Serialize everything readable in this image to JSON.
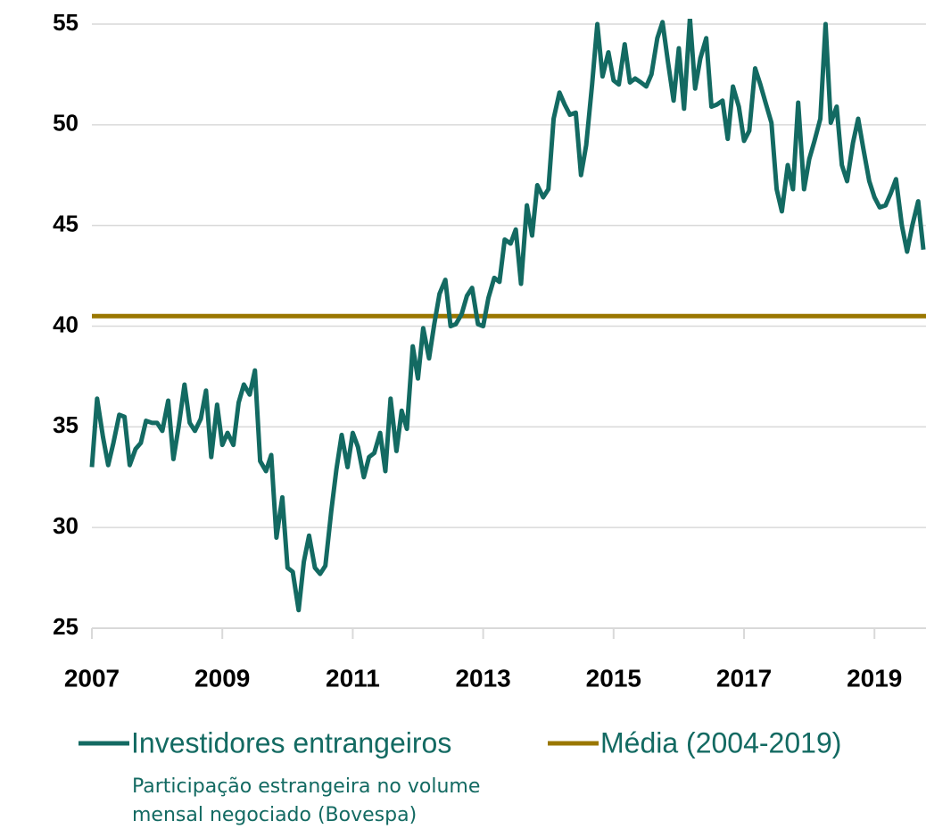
{
  "chart_data": {
    "type": "line",
    "ylim": [
      25,
      55
    ],
    "yticks": [
      25,
      30,
      35,
      40,
      45,
      50,
      55
    ],
    "grid": true,
    "xlim": [
      2007,
      2019.79
    ],
    "xticks": [
      2007,
      2009,
      2011,
      2013,
      2015,
      2017,
      2019
    ],
    "legend": "bottom",
    "note": "Participação estrangeira no volume mensal negociado (Bovespa)",
    "series": [
      {
        "name": "Investidores entrangeiros",
        "color": "#136a62",
        "x": [
          2007.0,
          2007.08,
          2007.17,
          2007.25,
          2007.33,
          2007.42,
          2007.5,
          2007.58,
          2007.67,
          2007.75,
          2007.83,
          2007.92,
          2008.0,
          2008.08,
          2008.17,
          2008.25,
          2008.33,
          2008.42,
          2008.5,
          2008.58,
          2008.67,
          2008.75,
          2008.83,
          2008.92,
          2009.0,
          2009.08,
          2009.17,
          2009.25,
          2009.33,
          2009.42,
          2009.5,
          2009.58,
          2009.67,
          2009.75,
          2009.83,
          2009.92,
          2010.0,
          2010.08,
          2010.17,
          2010.25,
          2010.33,
          2010.42,
          2010.5,
          2010.58,
          2010.67,
          2010.75,
          2010.83,
          2010.92,
          2011.0,
          2011.08,
          2011.17,
          2011.25,
          2011.33,
          2011.42,
          2011.5,
          2011.58,
          2011.67,
          2011.75,
          2011.83,
          2011.92,
          2012.0,
          2012.08,
          2012.17,
          2012.25,
          2012.33,
          2012.42,
          2012.5,
          2012.58,
          2012.67,
          2012.75,
          2012.83,
          2012.92,
          2013.0,
          2013.08,
          2013.17,
          2013.25,
          2013.33,
          2013.42,
          2013.5,
          2013.58,
          2013.67,
          2013.75,
          2013.83,
          2013.92,
          2014.0,
          2014.08,
          2014.17,
          2014.25,
          2014.33,
          2014.42,
          2014.5,
          2014.58,
          2014.67,
          2014.75,
          2014.83,
          2014.92,
          2015.0,
          2015.08,
          2015.17,
          2015.25,
          2015.33,
          2015.42,
          2015.5,
          2015.58,
          2015.67,
          2015.75,
          2015.83,
          2015.92,
          2016.0,
          2016.08,
          2016.17,
          2016.25,
          2016.33,
          2016.42,
          2016.5,
          2016.58,
          2016.67,
          2016.75,
          2016.83,
          2016.92,
          2017.0,
          2017.08,
          2017.17,
          2017.25,
          2017.33,
          2017.42,
          2017.5,
          2017.58,
          2017.67,
          2017.75,
          2017.83,
          2017.92,
          2018.0,
          2018.08,
          2018.17,
          2018.25,
          2018.33,
          2018.42,
          2018.5,
          2018.58,
          2018.67,
          2018.75,
          2018.83,
          2018.92,
          2019.0,
          2019.08,
          2019.17,
          2019.25,
          2019.33,
          2019.42,
          2019.5,
          2019.58,
          2019.67,
          2019.75
        ],
        "values": [
          33.0,
          36.4,
          34.5,
          33.1,
          34.2,
          35.6,
          35.5,
          33.1,
          33.9,
          34.2,
          35.3,
          35.2,
          35.2,
          34.8,
          36.3,
          33.4,
          35.0,
          37.1,
          35.2,
          34.8,
          35.4,
          36.8,
          33.5,
          36.1,
          34.1,
          34.7,
          34.1,
          36.2,
          37.1,
          36.6,
          37.8,
          33.3,
          32.8,
          33.6,
          29.5,
          31.5,
          28.0,
          27.8,
          25.9,
          28.3,
          29.6,
          28.0,
          27.7,
          28.1,
          30.8,
          32.9,
          34.6,
          33.0,
          34.7,
          34.0,
          32.5,
          33.5,
          33.7,
          34.7,
          32.8,
          36.4,
          33.8,
          35.8,
          34.9,
          39.0,
          37.4,
          39.9,
          38.4,
          40.1,
          41.6,
          42.3,
          40.0,
          40.1,
          40.6,
          41.5,
          41.9,
          40.1,
          40.0,
          41.4,
          42.4,
          42.2,
          44.3,
          44.1,
          44.8,
          42.1,
          46.0,
          44.5,
          47.0,
          46.4,
          46.8,
          50.3,
          51.6,
          51.0,
          50.5,
          50.6,
          47.5,
          49.0,
          52.0,
          55.0,
          52.4,
          53.6,
          52.2,
          52.0,
          54.0,
          52.1,
          52.3,
          52.1,
          51.9,
          52.5,
          54.3,
          55.1,
          53.2,
          51.2,
          53.8,
          50.8,
          55.3,
          51.8,
          53.3,
          54.3,
          50.9,
          51.0,
          51.2,
          49.3,
          51.9,
          50.9,
          49.2,
          49.7,
          52.8,
          52.0,
          51.1,
          50.1,
          46.8,
          45.7,
          48.0,
          46.8,
          51.1,
          46.8,
          48.3,
          49.2,
          50.3,
          55.0,
          50.1,
          50.9,
          48.0,
          47.2,
          49.1,
          50.3,
          48.8,
          47.2,
          46.4,
          45.9,
          46.0,
          46.6,
          47.3,
          45.0,
          43.7,
          45.0,
          46.2,
          43.8
        ]
      },
      {
        "name": "Média (2004-2019)",
        "color": "#9a7700",
        "x": [
          2007,
          2019.79
        ],
        "values": [
          40.5,
          40.5
        ]
      }
    ]
  }
}
